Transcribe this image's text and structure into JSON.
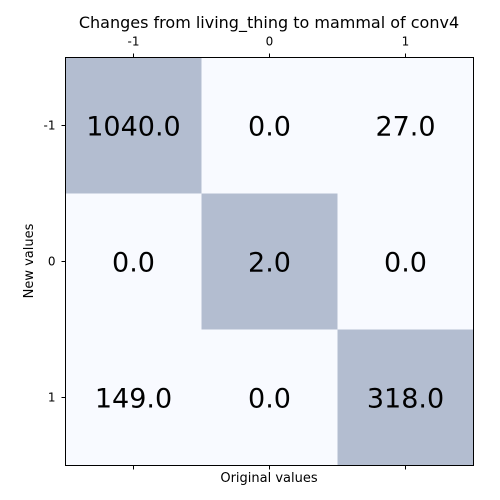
{
  "chart_data": {
    "type": "heatmap",
    "title": "Changes from living_thing to mammal of conv4",
    "xlabel": "Original values",
    "ylabel": "New values",
    "x_categories": [
      "-1",
      "0",
      "1"
    ],
    "y_categories": [
      "-1",
      "0",
      "1"
    ],
    "values": [
      [
        1040.0,
        0.0,
        27.0
      ],
      [
        0.0,
        2.0,
        0.0
      ],
      [
        149.0,
        0.0,
        318.0
      ]
    ],
    "cell_labels": [
      [
        "1040.0",
        "0.0",
        "27.0"
      ],
      [
        "0.0",
        "2.0",
        "0.0"
      ],
      [
        "149.0",
        "0.0",
        "318.0"
      ]
    ],
    "x_ticks_position": "top and bottom (labels on top)",
    "colors": {
      "diagonal_cell": "#b3bdd0",
      "offdiagonal_cell": "#f8faff"
    },
    "grid": false
  }
}
